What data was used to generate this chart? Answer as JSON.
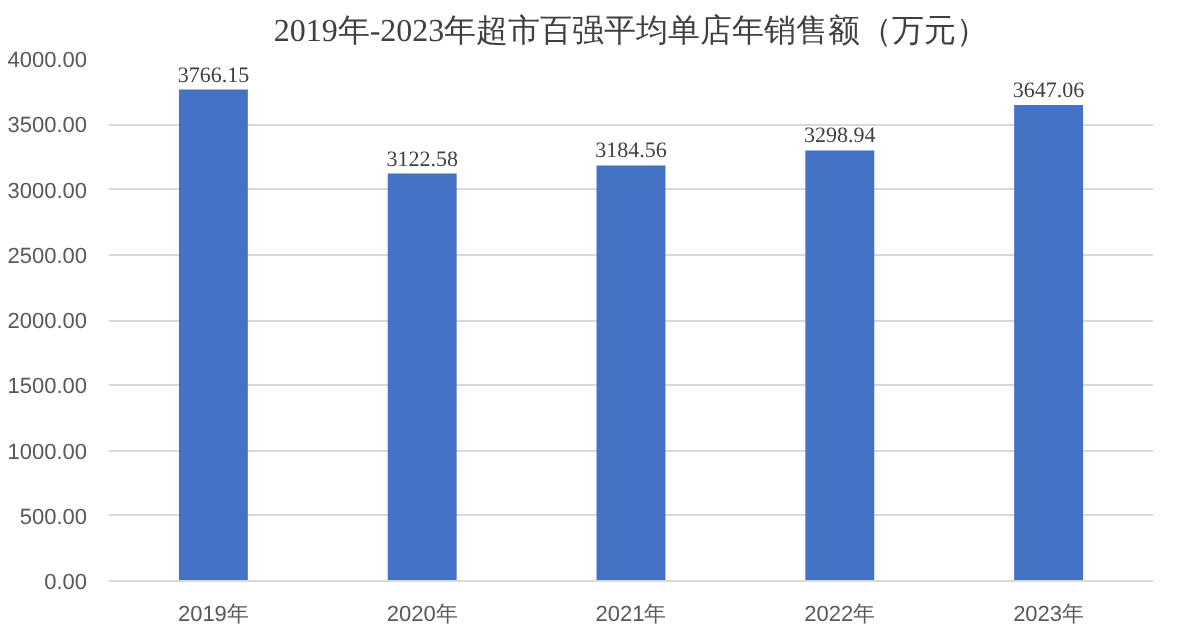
{
  "chart_data": {
    "type": "bar",
    "title": "2019年-2023年超市百强平均单店年销售额（万元）",
    "categories": [
      "2019年",
      "2020年",
      "2021年",
      "2022年",
      "2023年"
    ],
    "values": [
      3766.15,
      3122.58,
      3184.56,
      3298.94,
      3647.06
    ],
    "color": "#4472c4",
    "ylim": [
      0,
      4000
    ],
    "yticks": [
      {
        "value": 0,
        "label": "0.00"
      },
      {
        "value": 500,
        "label": "500.00"
      },
      {
        "value": 1000,
        "label": "1000.00"
      },
      {
        "value": 1500,
        "label": "1500.00"
      },
      {
        "value": 2000,
        "label": "2000.00"
      },
      {
        "value": 2500,
        "label": "2500.00"
      },
      {
        "value": 3000,
        "label": "3000.00"
      },
      {
        "value": 3500,
        "label": "3500.00"
      },
      {
        "value": 4000,
        "label": "4000.00"
      }
    ],
    "grid": "y",
    "data_labels": true
  }
}
